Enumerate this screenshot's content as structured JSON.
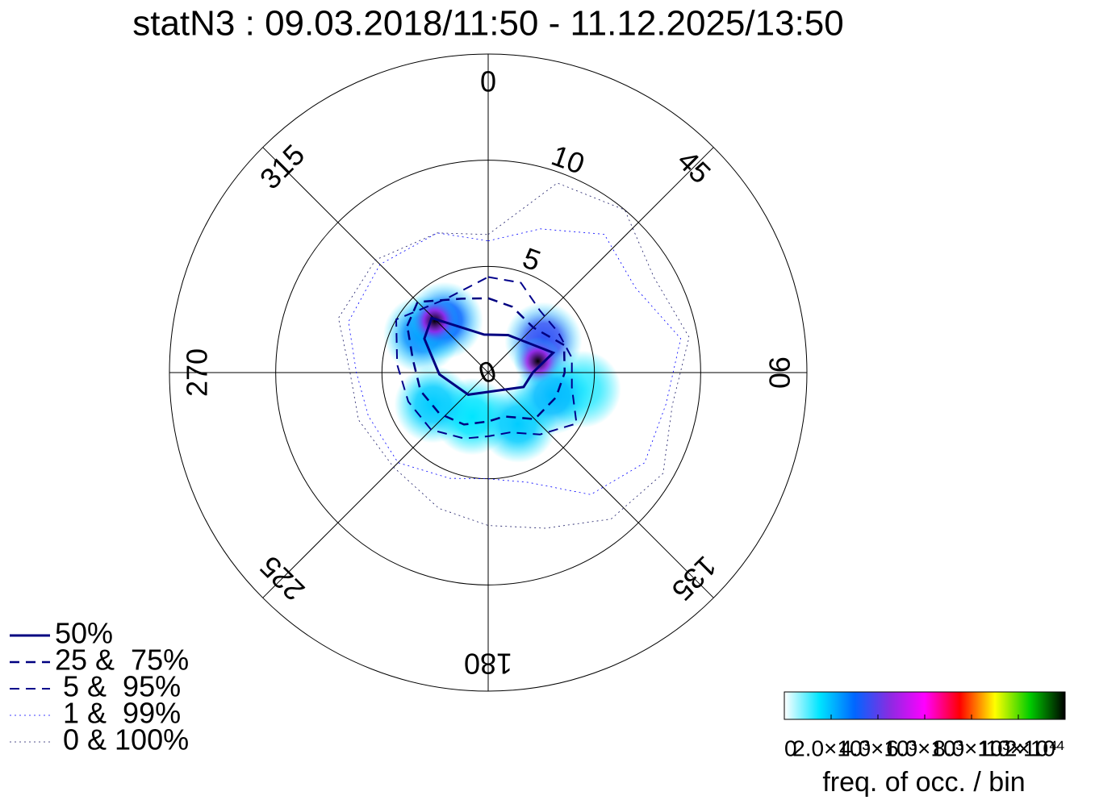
{
  "chart_data": {
    "type": "polar",
    "title": "statN3 : 09.03.2018/11:50 - 11.12.2025/13:50",
    "rlim": [
      0,
      15
    ],
    "rticks": [
      0,
      5,
      10
    ],
    "thetaticks": [
      0,
      45,
      90,
      135,
      180,
      225,
      270,
      315
    ],
    "density": {
      "theta": [
        300,
        320,
        200,
        150,
        110,
        100,
        60,
        240,
        314,
        77
      ],
      "r": [
        3.6,
        3.2,
        2.2,
        2.8,
        3.2,
        4.5,
        3.0,
        3.0,
        3.5,
        2.4
      ],
      "values": [
        2500,
        3000,
        1500,
        1800,
        2000,
        1200,
        3500,
        1800,
        12000,
        12000
      ]
    },
    "clim": [
      0,
      12000
    ],
    "colormap": [
      "#ffffff",
      "#00e5ff",
      "#0066ff",
      "#8a2be2",
      "#ff00ff",
      "#ff0000",
      "#ffff00",
      "#00cc00",
      "#000000"
    ],
    "cticks": [
      {
        "value": 0,
        "label": "0"
      },
      {
        "value": 2000,
        "label": "2.0×10³"
      },
      {
        "value": 4000,
        "label": "4.0×10³"
      },
      {
        "value": 6000,
        "label": "6.0×10³"
      },
      {
        "value": 8000,
        "label": "8.0×10³"
      },
      {
        "value": 10000,
        "label": "1.0×10⁴"
      },
      {
        "value": 12000,
        "label": "1.2×10⁴"
      }
    ],
    "colorbar_label": "freq. of occ. / bin",
    "series": [
      {
        "name": "50%",
        "color": "#000080",
        "dash": "solid",
        "theta": [
          314,
          354,
          28,
          73,
          90,
          112,
          222,
          268,
          298
        ],
        "r": [
          3.7,
          1.8,
          2.0,
          3.2,
          2.1,
          1.8,
          1.4,
          2.3,
          3.4
        ]
      },
      {
        "name": "25 &  75%",
        "color": "#000080",
        "dash": "dashed",
        "theta": [
          300,
          315,
          340,
          0,
          20,
          45,
          70,
          90,
          110,
          135,
          160,
          180,
          205,
          230,
          255,
          280
        ],
        "r": [
          4.4,
          4.7,
          3.7,
          3.5,
          3.3,
          3.0,
          3.8,
          3.6,
          3.4,
          3.1,
          2.2,
          2.3,
          2.7,
          3.0,
          3.3,
          3.6
        ]
      },
      {
        "name": " 5 &  95%",
        "color": "#00008b",
        "dash": "dashed",
        "theta": [
          0,
          20,
          40,
          60,
          80,
          100,
          120,
          140,
          160,
          180,
          200,
          225,
          250,
          275,
          300,
          330
        ],
        "r": [
          4.5,
          4.5,
          3.8,
          3.8,
          4.0,
          4.0,
          4.8,
          3.8,
          3.0,
          3.0,
          3.3,
          3.8,
          4.0,
          4.3,
          5.0,
          4.0
        ]
      },
      {
        "name": " 1 &  99%",
        "color": "#0000ff",
        "dash": "dotted",
        "theta": [
          0,
          20,
          40,
          60,
          80,
          100,
          120,
          140,
          160,
          180,
          200,
          225,
          250,
          270,
          290,
          315,
          340
        ],
        "r": [
          6.2,
          7.2,
          8.5,
          8.0,
          9.2,
          8.5,
          8.5,
          7.5,
          5.5,
          5.0,
          5.3,
          6.0,
          6.0,
          6.2,
          7.0,
          7.2,
          7.0
        ]
      },
      {
        "name": " 0 & 100%",
        "color": "#1a1a66",
        "dash": "dotted",
        "theta": [
          0,
          20,
          40,
          60,
          80,
          100,
          120,
          140,
          160,
          180,
          200,
          225,
          250,
          270,
          290,
          315,
          340
        ],
        "r": [
          6.5,
          9.5,
          10.0,
          9.0,
          9.6,
          8.8,
          9.5,
          9.0,
          7.8,
          7.2,
          6.8,
          6.3,
          6.5,
          6.5,
          7.5,
          7.5,
          7.0
        ]
      }
    ]
  }
}
